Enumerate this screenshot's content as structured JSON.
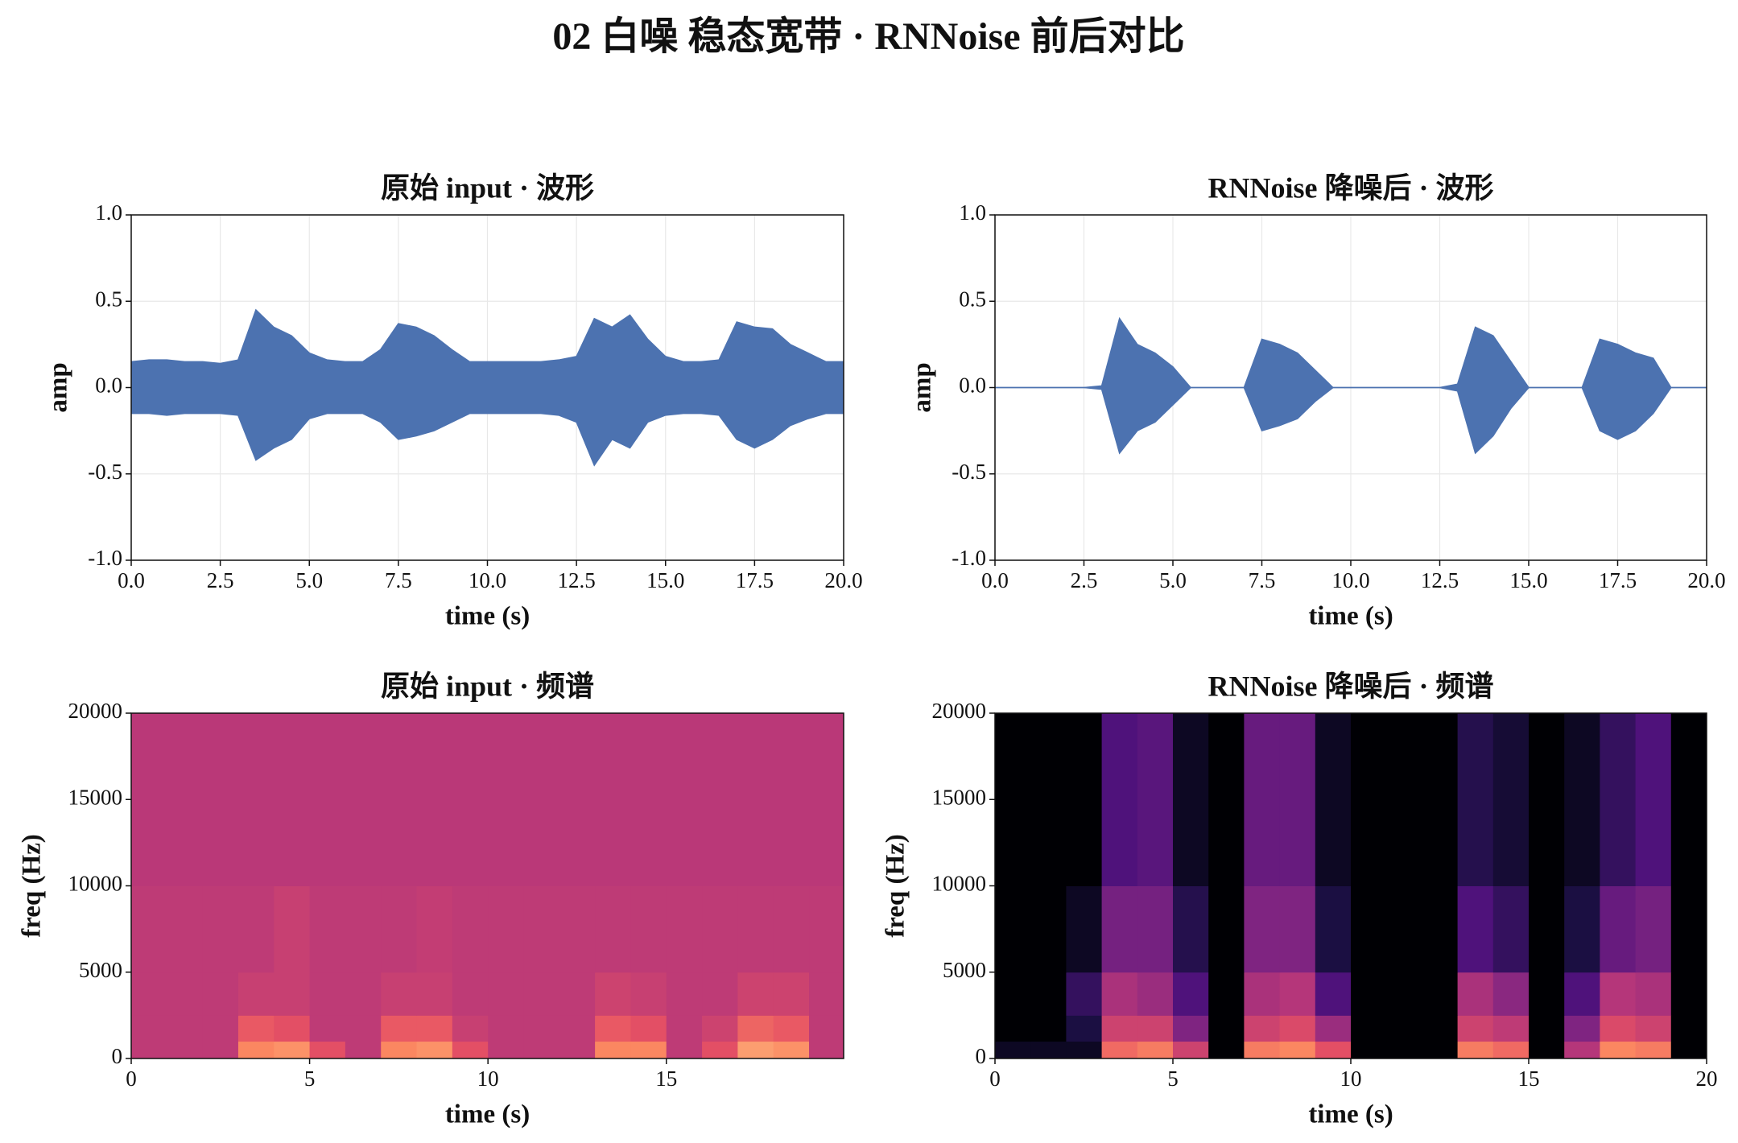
{
  "title": "02 白噪 稳态宽带 · RNNoise 前后对比",
  "chart_data": [
    {
      "type": "envelope",
      "title": "原始 input · 波形",
      "xlabel": "time (s)",
      "ylabel": "amp",
      "color": "#4c72b0",
      "grid": true,
      "xlim": [
        0,
        20
      ],
      "ylim": [
        -1,
        1
      ],
      "xticks": [
        {
          "value": 0,
          "label": "0.0"
        },
        2.5,
        {
          "value": 5,
          "label": "5.0"
        },
        7.5,
        {
          "value": 10,
          "label": "10.0"
        },
        12.5,
        {
          "value": 15,
          "label": "15.0"
        },
        17.5,
        {
          "value": 20,
          "label": "20.0"
        }
      ],
      "yticks": [
        {
          "value": -1,
          "label": "-1.0"
        },
        -0.5,
        {
          "value": 0,
          "label": "0.0"
        },
        0.5,
        {
          "value": 1,
          "label": "1.0"
        }
      ],
      "x": [
        0,
        0.5,
        1,
        1.5,
        2,
        2.5,
        3,
        3.5,
        4,
        4.5,
        5,
        5.5,
        6,
        6.5,
        7,
        7.5,
        8,
        8.5,
        9,
        9.5,
        10,
        10.5,
        11,
        11.5,
        12,
        12.5,
        13,
        13.5,
        14,
        14.5,
        15,
        15.5,
        16,
        16.5,
        17,
        17.5,
        18,
        18.5,
        19,
        19.5,
        20
      ],
      "upper": [
        0.15,
        0.16,
        0.16,
        0.15,
        0.15,
        0.14,
        0.16,
        0.45,
        0.35,
        0.3,
        0.2,
        0.16,
        0.15,
        0.15,
        0.22,
        0.37,
        0.35,
        0.3,
        0.22,
        0.15,
        0.15,
        0.15,
        0.15,
        0.15,
        0.16,
        0.18,
        0.4,
        0.35,
        0.42,
        0.28,
        0.18,
        0.15,
        0.15,
        0.16,
        0.38,
        0.35,
        0.34,
        0.25,
        0.2,
        0.15,
        0.15
      ],
      "lower": [
        -0.15,
        -0.15,
        -0.16,
        -0.15,
        -0.15,
        -0.15,
        -0.16,
        -0.42,
        -0.35,
        -0.3,
        -0.18,
        -0.15,
        -0.15,
        -0.15,
        -0.2,
        -0.3,
        -0.28,
        -0.25,
        -0.2,
        -0.15,
        -0.15,
        -0.15,
        -0.15,
        -0.15,
        -0.16,
        -0.2,
        -0.45,
        -0.3,
        -0.35,
        -0.2,
        -0.16,
        -0.15,
        -0.15,
        -0.16,
        -0.3,
        -0.35,
        -0.3,
        -0.22,
        -0.18,
        -0.15,
        -0.15
      ]
    },
    {
      "type": "envelope",
      "title": "RNNoise 降噪后 · 波形",
      "xlabel": "time (s)",
      "ylabel": "amp",
      "color": "#4c72b0",
      "grid": true,
      "xlim": [
        0,
        20
      ],
      "ylim": [
        -1,
        1
      ],
      "xticks": [
        {
          "value": 0,
          "label": "0.0"
        },
        2.5,
        {
          "value": 5,
          "label": "5.0"
        },
        7.5,
        {
          "value": 10,
          "label": "10.0"
        },
        12.5,
        {
          "value": 15,
          "label": "15.0"
        },
        17.5,
        {
          "value": 20,
          "label": "20.0"
        }
      ],
      "yticks": [
        {
          "value": -1,
          "label": "-1.0"
        },
        -0.5,
        {
          "value": 0,
          "label": "0.0"
        },
        0.5,
        {
          "value": 1,
          "label": "1.0"
        }
      ],
      "x": [
        0,
        0.5,
        1,
        1.5,
        2,
        2.5,
        3,
        3.5,
        4,
        4.5,
        5,
        5.5,
        6,
        6.5,
        7,
        7.5,
        8,
        8.5,
        9,
        9.5,
        10,
        10.5,
        11,
        11.5,
        12,
        12.5,
        13,
        13.5,
        14,
        14.5,
        15,
        15.5,
        16,
        16.5,
        17,
        17.5,
        18,
        18.5,
        19,
        19.5,
        20
      ],
      "upper": [
        0,
        0,
        0,
        0,
        0,
        0,
        0.01,
        0.4,
        0.25,
        0.2,
        0.12,
        0,
        0,
        0,
        0,
        0.28,
        0.25,
        0.2,
        0.1,
        0,
        0,
        0,
        0,
        0,
        0,
        0,
        0.02,
        0.35,
        0.3,
        0.15,
        0,
        0,
        0,
        0,
        0.28,
        0.25,
        0.2,
        0.17,
        0,
        0,
        0
      ],
      "lower": [
        0,
        0,
        0,
        0,
        0,
        0,
        -0.01,
        -0.38,
        -0.25,
        -0.2,
        -0.1,
        0,
        0,
        0,
        0,
        -0.25,
        -0.22,
        -0.18,
        -0.08,
        0,
        0,
        0,
        0,
        0,
        0,
        0,
        -0.02,
        -0.38,
        -0.28,
        -0.12,
        0,
        0,
        0,
        0,
        -0.25,
        -0.3,
        -0.25,
        -0.15,
        0,
        0,
        0
      ]
    },
    {
      "type": "spectrogram",
      "title": "原始 input · 频谱",
      "xlabel": "time (s)",
      "ylabel": "freq (Hz)",
      "colormap": "magma",
      "xlim": [
        0,
        19.97
      ],
      "ylim": [
        0,
        20000
      ],
      "zlim": [
        -100,
        -20
      ],
      "xticks": [
        0,
        5,
        10,
        15
      ],
      "yticks": [
        0,
        5000,
        10000,
        15000,
        20000
      ],
      "x_edges": [
        0,
        1,
        2,
        3,
        4,
        5,
        6,
        7,
        8,
        9,
        10,
        11,
        12,
        13,
        14,
        15,
        16,
        17,
        18,
        19,
        20
      ],
      "y_edges": [
        0,
        1000,
        2500,
        5000,
        10000,
        20000
      ],
      "values": [
        [
          -58,
          -58,
          -58,
          -40,
          -38,
          -50,
          -58,
          -40,
          -38,
          -50,
          -58,
          -58,
          -58,
          -40,
          -40,
          -58,
          -50,
          -36,
          -38,
          -58
        ],
        [
          -58,
          -58,
          -58,
          -48,
          -50,
          -58,
          -58,
          -48,
          -48,
          -56,
          -58,
          -58,
          -58,
          -48,
          -50,
          -58,
          -55,
          -46,
          -48,
          -58
        ],
        [
          -58,
          -58,
          -58,
          -56,
          -56,
          -58,
          -58,
          -56,
          -56,
          -58,
          -58,
          -58,
          -58,
          -55,
          -56,
          -58,
          -58,
          -55,
          -55,
          -58
        ],
        [
          -58,
          -58,
          -58,
          -58,
          -56,
          -58,
          -58,
          -58,
          -57,
          -58,
          -58,
          -58,
          -58,
          -58,
          -58,
          -58,
          -58,
          -58,
          -58,
          -58
        ],
        [
          -59,
          -59,
          -59,
          -59,
          -59,
          -59,
          -59,
          -59,
          -59,
          -59,
          -59,
          -59,
          -59,
          -59,
          -59,
          -59,
          -59,
          -59,
          -59,
          -59
        ]
      ]
    },
    {
      "type": "spectrogram",
      "title": "RNNoise 降噪后 · 频谱",
      "xlabel": "time (s)",
      "ylabel": "freq (Hz)",
      "colormap": "magma",
      "xlim": [
        0,
        20
      ],
      "ylim": [
        0,
        20000
      ],
      "zlim": [
        -100,
        -20
      ],
      "xticks": [
        0,
        5,
        10,
        15,
        20
      ],
      "yticks": [
        0,
        5000,
        10000,
        15000,
        20000
      ],
      "x_edges": [
        0,
        1,
        2,
        3,
        4,
        5,
        6,
        7,
        8,
        9,
        10,
        11,
        12,
        13,
        14,
        15,
        16,
        17,
        18,
        19,
        20
      ],
      "y_edges": [
        0,
        1000,
        2500,
        5000,
        10000,
        20000
      ],
      "values": [
        [
          -95,
          -95,
          -95,
          -45,
          -42,
          -55,
          -100,
          -42,
          -40,
          -50,
          -100,
          -100,
          -100,
          -42,
          -45,
          -100,
          -60,
          -40,
          -42,
          -100
        ],
        [
          -100,
          -100,
          -90,
          -55,
          -55,
          -70,
          -100,
          -55,
          -52,
          -65,
          -100,
          -100,
          -100,
          -55,
          -58,
          -100,
          -70,
          -52,
          -55,
          -100
        ],
        [
          -100,
          -100,
          -85,
          -62,
          -65,
          -80,
          -100,
          -62,
          -60,
          -80,
          -100,
          -100,
          -100,
          -62,
          -68,
          -100,
          -80,
          -60,
          -62,
          -100
        ],
        [
          -100,
          -100,
          -95,
          -72,
          -72,
          -88,
          -100,
          -70,
          -70,
          -90,
          -100,
          -100,
          -100,
          -80,
          -85,
          -100,
          -90,
          -75,
          -72,
          -100
        ],
        [
          -100,
          -100,
          -100,
          -80,
          -78,
          -95,
          -100,
          -75,
          -75,
          -95,
          -100,
          -100,
          -100,
          -88,
          -92,
          -100,
          -95,
          -85,
          -80,
          -100
        ]
      ]
    }
  ]
}
